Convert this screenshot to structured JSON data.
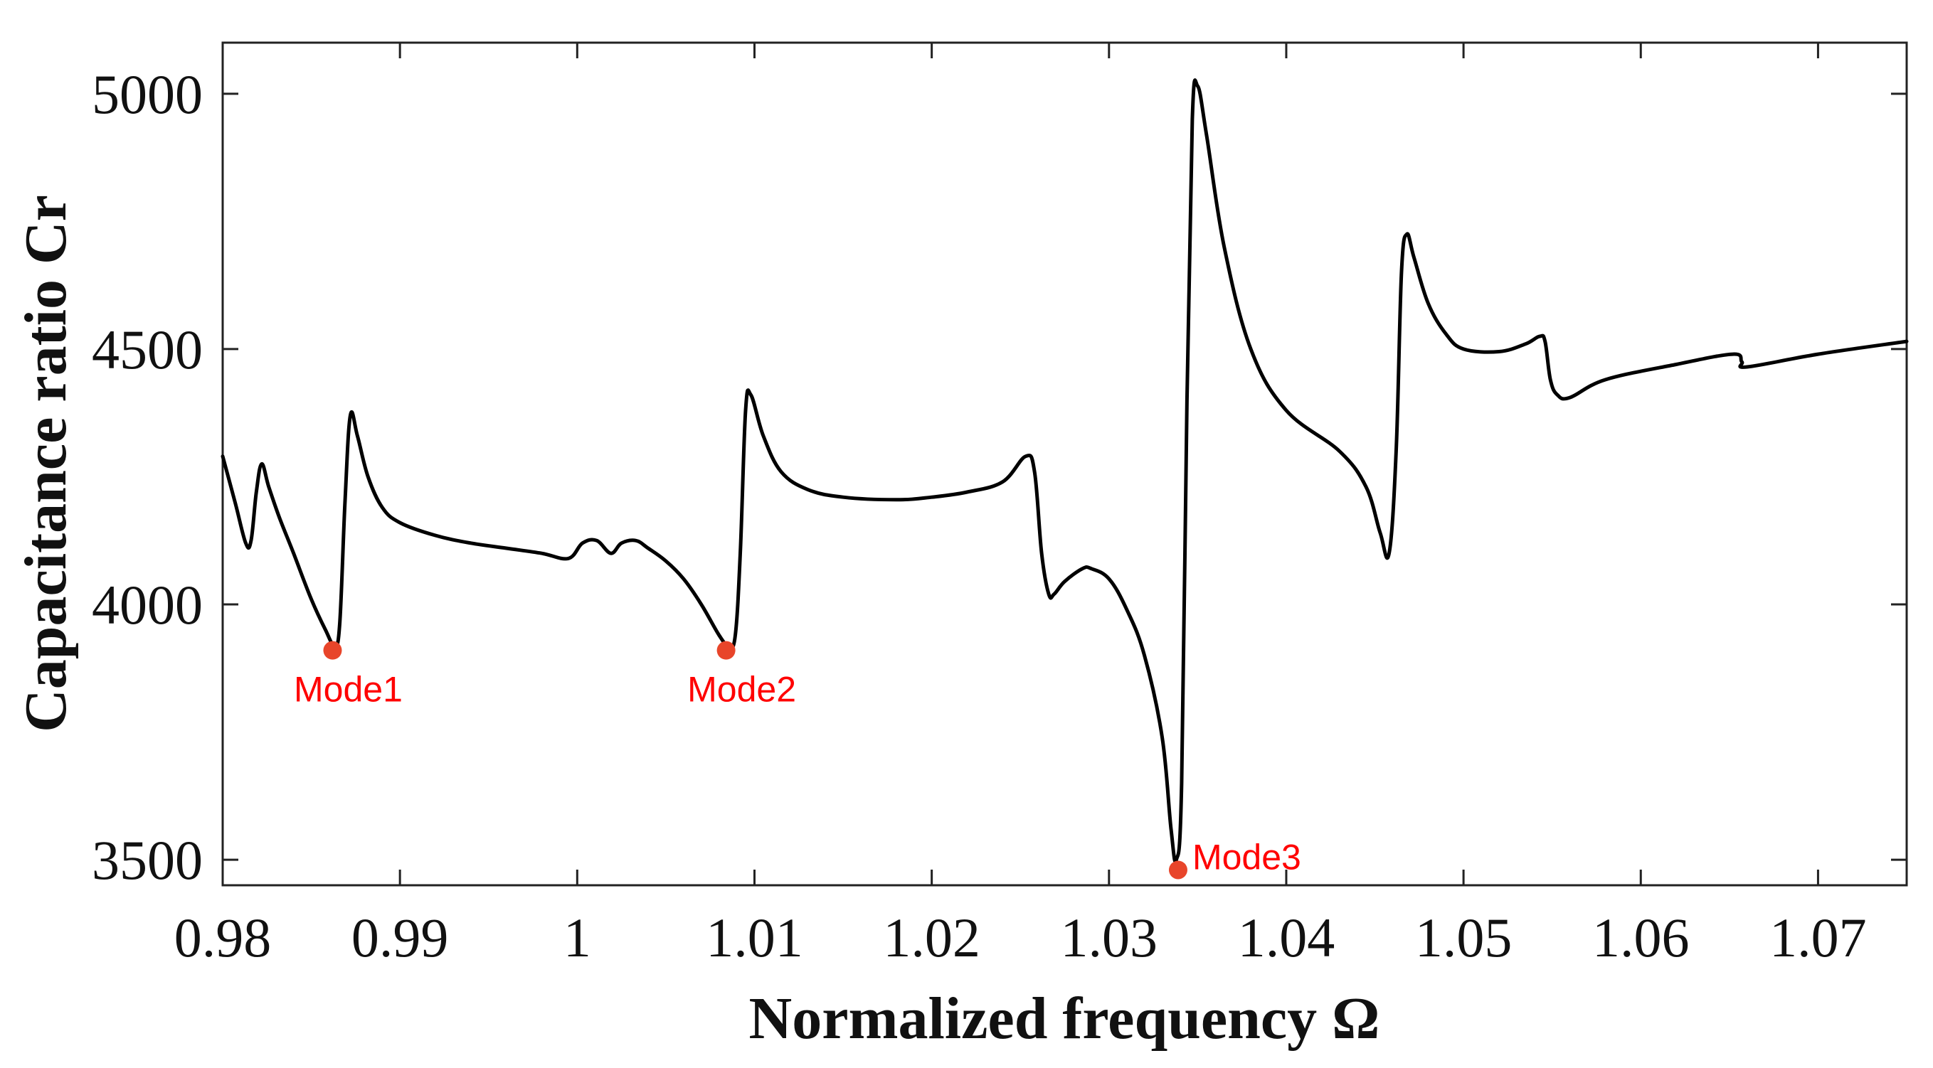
{
  "chart_data": {
    "type": "line",
    "title": "",
    "xlabel": "Normalized frequency Ω",
    "ylabel": "Capacitance ratio Cr",
    "xlim": [
      0.98,
      1.075
    ],
    "ylim": [
      3450,
      5100
    ],
    "xticks": [
      0.98,
      0.99,
      1.0,
      1.01,
      1.02,
      1.03,
      1.04,
      1.05,
      1.06,
      1.07
    ],
    "xtick_labels": [
      "0.98",
      "0.99",
      "1",
      "1.01",
      "1.02",
      "1.03",
      "1.04",
      "1.05",
      "1.06",
      "1.07"
    ],
    "yticks": [
      3500,
      4000,
      4500,
      5000
    ],
    "ytick_labels": [
      "3500",
      "4000",
      "4500",
      "5000"
    ],
    "grid": false,
    "line_color": "#000000",
    "marker_color": "#e8452a",
    "label_color": "#ff0000",
    "series": [
      {
        "name": "Cr",
        "x": [
          0.98,
          0.9807,
          0.9813,
          0.9816,
          0.9819,
          0.9822,
          0.9826,
          0.9832,
          0.984,
          0.985,
          0.9858,
          0.9863,
          0.9866,
          0.9869,
          0.9872,
          0.9876,
          0.9882,
          0.989,
          0.99,
          0.992,
          0.994,
          0.996,
          0.998,
          0.9995,
          1.0003,
          1.0011,
          1.0019,
          1.0025,
          1.0033,
          1.004,
          1.005,
          1.006,
          1.007,
          1.008,
          1.0085,
          1.0089,
          1.0092,
          1.0095,
          1.0098,
          1.0105,
          1.0115,
          1.013,
          1.015,
          1.018,
          1.02,
          1.022,
          1.024,
          1.0253,
          1.0258,
          1.0262,
          1.0266,
          1.0269,
          1.0275,
          1.0285,
          1.029,
          1.03,
          1.031,
          1.032,
          1.033,
          1.0335,
          1.0338,
          1.0341,
          1.0344,
          1.0347,
          1.035,
          1.0355,
          1.0365,
          1.038,
          1.04,
          1.043,
          1.0445,
          1.0453,
          1.0458,
          1.0462,
          1.0465,
          1.0468,
          1.0472,
          1.048,
          1.049,
          1.05,
          1.052,
          1.0535,
          1.0543,
          1.0546,
          1.0549,
          1.0553,
          1.056,
          1.058,
          1.062,
          1.0652,
          1.0657,
          1.066,
          1.07,
          1.075
        ],
        "y": [
          4290,
          4200,
          4120,
          4125,
          4220,
          4275,
          4230,
          4170,
          4100,
          4010,
          3950,
          3920,
          3960,
          4200,
          4370,
          4330,
          4250,
          4190,
          4160,
          4135,
          4120,
          4110,
          4100,
          4090,
          4120,
          4125,
          4100,
          4120,
          4125,
          4110,
          4085,
          4050,
          4000,
          3940,
          3920,
          3935,
          4100,
          4380,
          4410,
          4330,
          4260,
          4225,
          4210,
          4205,
          4210,
          4220,
          4240,
          4290,
          4260,
          4100,
          4020,
          4020,
          4045,
          4070,
          4070,
          4050,
          3990,
          3900,
          3740,
          3560,
          3500,
          3650,
          4400,
          4950,
          5015,
          4920,
          4700,
          4500,
          4380,
          4300,
          4230,
          4140,
          4100,
          4300,
          4650,
          4725,
          4680,
          4590,
          4530,
          4500,
          4495,
          4510,
          4525,
          4515,
          4440,
          4410,
          4405,
          4440,
          4470,
          4490,
          4475,
          4465,
          4490,
          4515
        ]
      }
    ],
    "annotations": [
      {
        "label": "Mode1",
        "x": 0.9862,
        "y": 3910
      },
      {
        "label": "Mode2",
        "x": 1.0084,
        "y": 3910
      },
      {
        "label": "Mode3",
        "x": 1.0339,
        "y": 3480
      }
    ]
  }
}
